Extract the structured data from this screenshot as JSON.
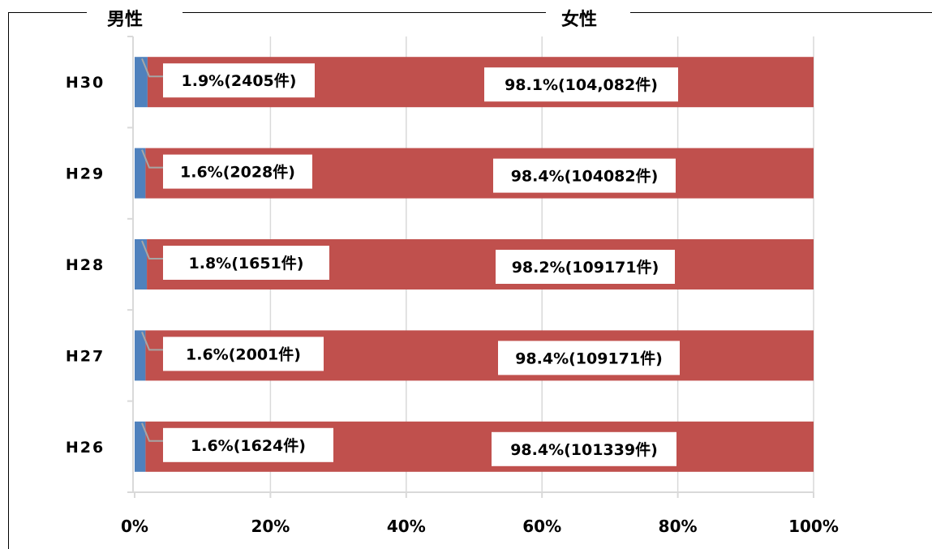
{
  "chart_data": {
    "type": "bar",
    "orientation": "horizontal",
    "stacked": "percent",
    "categories": [
      "H30",
      "H29",
      "H28",
      "H27",
      "H26"
    ],
    "series": [
      {
        "name": "男性",
        "color": "#4f81bd",
        "values": [
          1.9,
          1.6,
          1.8,
          1.6,
          1.6
        ]
      },
      {
        "name": "女性",
        "color": "#c0504d",
        "values": [
          98.1,
          98.4,
          98.2,
          98.4,
          98.4
        ]
      }
    ],
    "data_labels": {
      "male": [
        "1.9%(2405件)",
        "1.6%(2028件)",
        "1.8%(1651件)",
        "1.6%(2001件)",
        "1.6%(1624件)"
      ],
      "female": [
        "98.1%(104,082件)",
        "98.4%(104082件)",
        "98.2%(109171件)",
        "98.4%(109171件)",
        "98.4%(101339件)"
      ]
    },
    "x_ticks": [
      "0%",
      "20%",
      "40%",
      "60%",
      "80%",
      "100%"
    ],
    "xlim": [
      0,
      100
    ],
    "grid": true,
    "legend_position": "top"
  },
  "legend": {
    "male": "男性",
    "female": "女性"
  }
}
